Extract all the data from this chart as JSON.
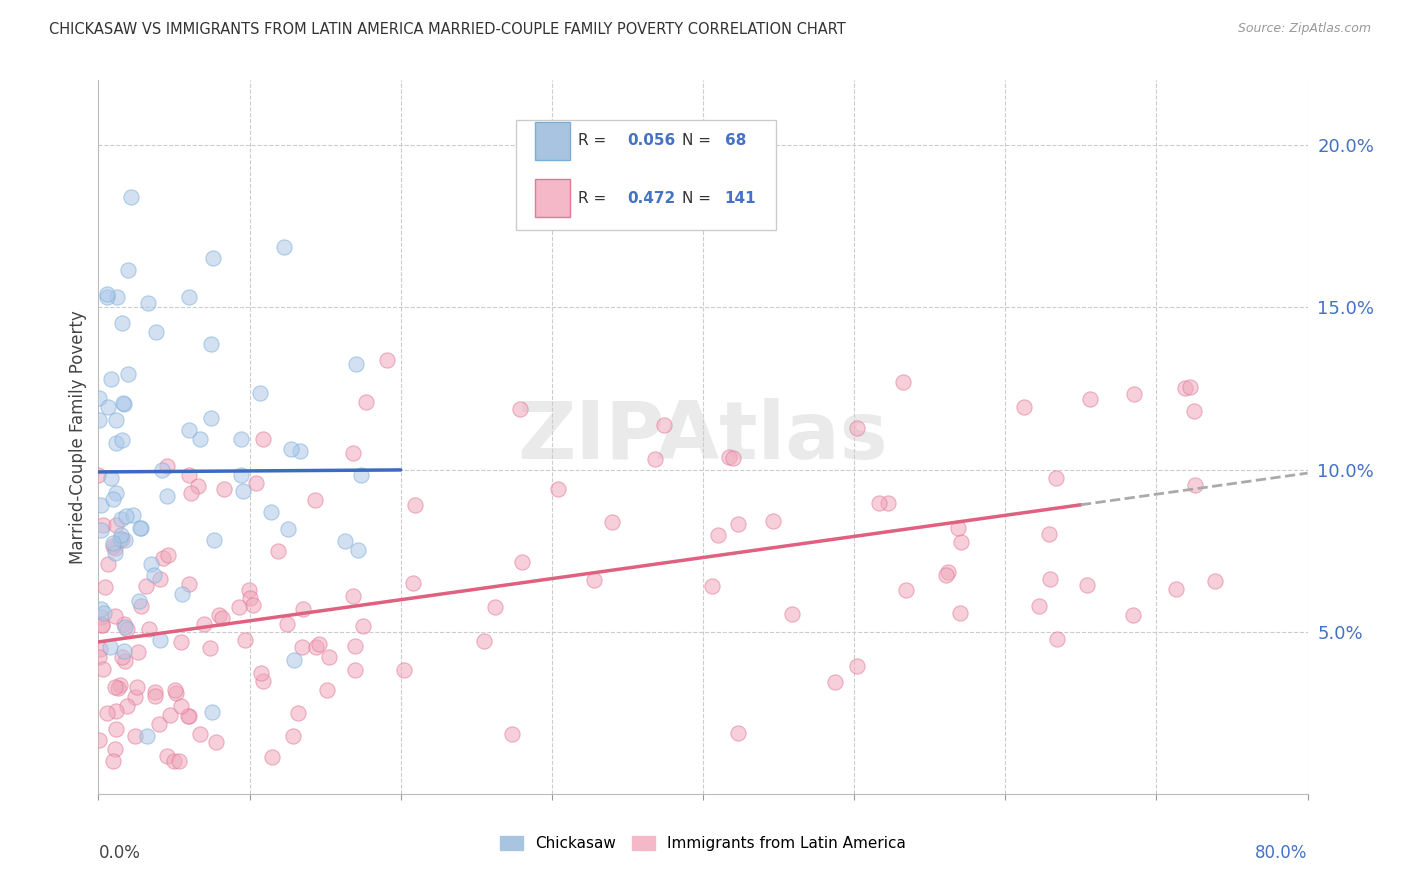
{
  "title": "CHICKASAW VS IMMIGRANTS FROM LATIN AMERICA MARRIED-COUPLE FAMILY POVERTY CORRELATION CHART",
  "source": "Source: ZipAtlas.com",
  "ylabel": "Married-Couple Family Poverty",
  "xlim": [
    0.0,
    80.0
  ],
  "ylim": [
    0.0,
    22.0
  ],
  "yticks_right": [
    5.0,
    10.0,
    15.0,
    20.0
  ],
  "series": [
    {
      "name": "Chickasaw",
      "R": 0.056,
      "N": 68,
      "legend_color": "#a8c4e0",
      "marker_face": "#adc8e8",
      "marker_edge": "#7aaed6",
      "trend_color": "#3a6bbf"
    },
    {
      "name": "Immigrants from Latin America",
      "R": 0.472,
      "N": 141,
      "legend_color": "#f4b8c8",
      "marker_face": "#f0a8bc",
      "marker_edge": "#e07898",
      "trend_color": "#e06080"
    }
  ],
  "watermark": "ZIPAtlas",
  "background_color": "#ffffff",
  "grid_color": "#cccccc"
}
